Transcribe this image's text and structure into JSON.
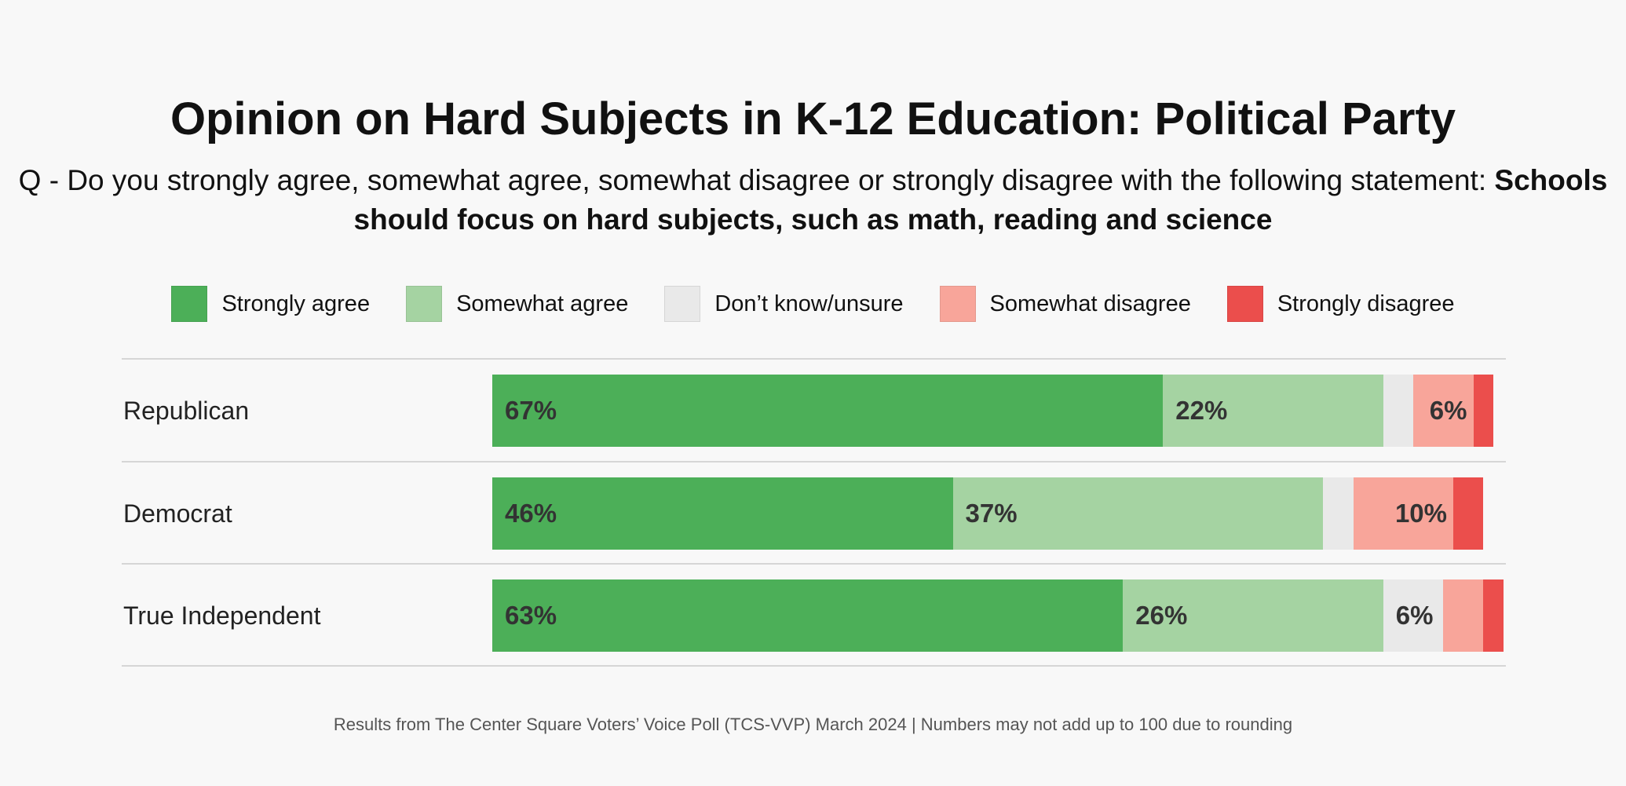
{
  "chart_data": {
    "type": "bar",
    "orientation": "horizontal-stacked-100",
    "title": "Opinion on Hard Subjects in K-12 Education: Political Party",
    "subtitle_prefix": "Q -  Do you strongly agree, somewhat agree, somewhat disagree or strongly disagree with the following statement: ",
    "subtitle_bold": "Schools should focus on hard subjects, such as math, reading and science",
    "categories": [
      "Republican",
      "Democrat",
      "True Independent"
    ],
    "series": [
      {
        "name": "Strongly agree",
        "color": "#4caf58",
        "values": [
          67,
          46,
          63
        ]
      },
      {
        "name": "Somewhat agree",
        "color": "#a5d3a2",
        "values": [
          22,
          37,
          26
        ]
      },
      {
        "name": "Don’t know/unsure",
        "color": "#e9e9e9",
        "values": [
          3,
          3,
          6
        ]
      },
      {
        "name": "Somewhat disagree",
        "color": "#f8a59a",
        "values": [
          6,
          10,
          4
        ]
      },
      {
        "name": "Strongly disagree",
        "color": "#eb4e4c",
        "values": [
          2,
          3,
          2
        ]
      }
    ],
    "label_threshold": 6,
    "legend": "top",
    "footer": "Results from The Center Square Voters’ Voice Poll (TCS-VVP) March 2024 | Numbers may not add up to 100 due to rounding"
  }
}
